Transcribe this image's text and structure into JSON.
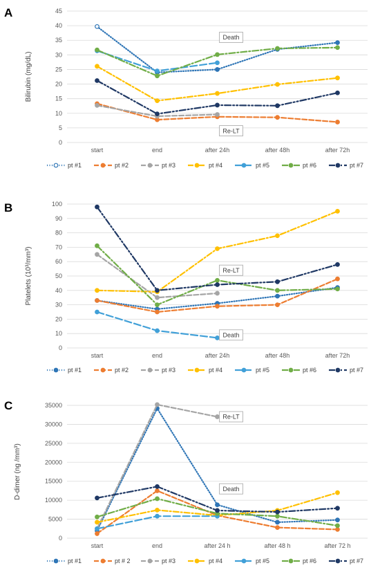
{
  "styles": {
    "pt #1": {
      "color": "#2E75B6",
      "dash": "1,2.5",
      "open_first": true
    },
    "pt #2": {
      "color": "#ED7D31",
      "dash": "7,3"
    },
    "pt #3": {
      "color": "#A5A5A5",
      "dash": "7,3"
    },
    "pt #4": {
      "color": "#FFC000",
      "dash": "8,3,2,3"
    },
    "pt #5": {
      "color": "#41A0D8",
      "dash": "10,4"
    },
    "pt #6": {
      "color": "#70AD47",
      "dash": "9,3,2,3"
    },
    "pt #7": {
      "color": "#1F3864",
      "dash": "9,3,2,3,2,3"
    }
  },
  "chart_data": [
    {
      "panel_label": "A",
      "type": "line",
      "ylabel": "Bilirubin  (mg/dL)",
      "xlabel": "",
      "categories": [
        "start",
        "end",
        "after 24h",
        "after 48h",
        "after 72h"
      ],
      "ylim": [
        0,
        45
      ],
      "yticks": [
        0,
        5,
        10,
        15,
        20,
        25,
        30,
        35,
        40,
        45
      ],
      "gridlines": true,
      "legend_position": "bottom",
      "legend_labels": [
        "pt #1",
        "pt #2",
        "pt #3",
        "pt #4",
        "pt #5",
        "pt #6",
        "pt #7"
      ],
      "series": [
        {
          "name": "pt #1",
          "values": [
            39.7,
            24.0,
            25.0,
            31.9,
            34.2
          ]
        },
        {
          "name": "pt #2",
          "values": [
            13.3,
            7.8,
            8.8,
            8.6,
            7.0
          ]
        },
        {
          "name": "pt #3",
          "values": [
            12.7,
            9.0,
            9.6,
            null,
            null
          ]
        },
        {
          "name": "pt #4",
          "values": [
            26.1,
            14.3,
            16.8,
            19.9,
            22.1
          ]
        },
        {
          "name": "pt #5",
          "values": [
            31.4,
            24.5,
            27.3,
            null,
            null
          ]
        },
        {
          "name": "pt #6",
          "values": [
            31.7,
            22.8,
            30.1,
            32.2,
            32.5
          ]
        },
        {
          "name": "pt #7",
          "values": [
            21.2,
            9.8,
            12.8,
            12.6,
            17.0
          ]
        }
      ],
      "annotations": [
        {
          "text": "Death",
          "category_index": 2,
          "value": 36.0
        },
        {
          "text": "Re-LT",
          "category_index": 2,
          "value": 4.0
        }
      ]
    },
    {
      "panel_label": "B",
      "type": "line",
      "ylabel": "Platelets  (10³/mm³)",
      "xlabel": "",
      "categories": [
        "start",
        "end",
        "after 24h",
        "after 48h",
        "after 72h"
      ],
      "ylim": [
        0,
        100
      ],
      "yticks": [
        0,
        10,
        20,
        30,
        40,
        50,
        60,
        70,
        80,
        90,
        100
      ],
      "gridlines": true,
      "legend_position": "bottom",
      "legend_labels": [
        "pt #1",
        "pt #2",
        "pt #3",
        "pt #4",
        "pt #5",
        "pt #6",
        "pt #7"
      ],
      "series": [
        {
          "name": "pt #1",
          "values": [
            33,
            27,
            31,
            36,
            42
          ]
        },
        {
          "name": "pt #2",
          "values": [
            33,
            25,
            29,
            30,
            48
          ]
        },
        {
          "name": "pt #3",
          "values": [
            65,
            35,
            38,
            null,
            null
          ]
        },
        {
          "name": "pt #4",
          "values": [
            40,
            39,
            69,
            78,
            95
          ]
        },
        {
          "name": "pt #5",
          "values": [
            25,
            12,
            7,
            null,
            null
          ]
        },
        {
          "name": "pt #6",
          "values": [
            71,
            30,
            47,
            40,
            41
          ]
        },
        {
          "name": "pt #7",
          "values": [
            98,
            40,
            44,
            46,
            58
          ]
        }
      ],
      "annotations": [
        {
          "text": "Re-LT",
          "category_index": 2,
          "value": 54
        },
        {
          "text": "Death",
          "category_index": 2,
          "value": 9
        }
      ]
    },
    {
      "panel_label": "C",
      "type": "line",
      "ylabel": "D-dimer  (ng /mm³)",
      "xlabel": "",
      "categories": [
        "start",
        "end",
        "after 24 h",
        "after 48 h",
        "after 72 h"
      ],
      "ylim": [
        0,
        35000
      ],
      "yticks": [
        0,
        5000,
        10000,
        15000,
        20000,
        25000,
        30000,
        35000
      ],
      "gridlines": true,
      "legend_position": "bottom",
      "legend_labels": [
        "pt #1",
        "pt # 2",
        "pt #3",
        "pt #4",
        "pt #5",
        "pt #6",
        "pt #7"
      ],
      "series": [
        {
          "name": "pt #1",
          "values": [
            2000,
            34200,
            8800,
            4200,
            4800
          ]
        },
        {
          "name": "pt #2",
          "values": [
            1200,
            12500,
            6000,
            2800,
            2300
          ]
        },
        {
          "name": "pt #3",
          "values": [
            2500,
            35200,
            32000,
            null,
            null
          ]
        },
        {
          "name": "pt #4",
          "values": [
            4200,
            7400,
            6000,
            7300,
            12000
          ]
        },
        {
          "name": "pt #5",
          "values": [
            2500,
            5800,
            5800,
            null,
            null
          ]
        },
        {
          "name": "pt #6",
          "values": [
            5600,
            10400,
            6500,
            5800,
            3300
          ]
        },
        {
          "name": "pt #7",
          "values": [
            10600,
            13600,
            7300,
            6900,
            7900
          ]
        }
      ],
      "annotations": [
        {
          "text": "Re-LT",
          "category_index": 2,
          "value": 32000
        },
        {
          "text": "Death",
          "category_index": 2,
          "value": 13000
        }
      ]
    }
  ]
}
